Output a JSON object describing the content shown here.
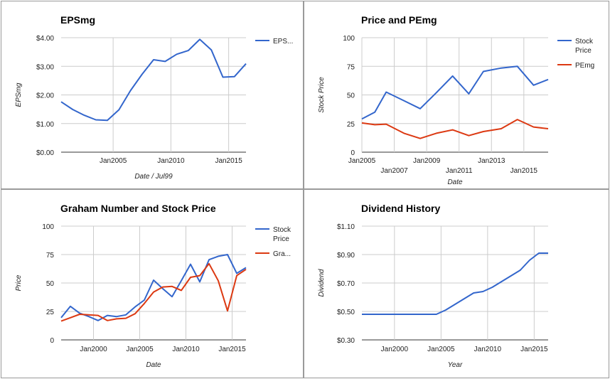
{
  "colors": {
    "blue": "#3366cc",
    "red": "#dc3912"
  },
  "chart_data": [
    {
      "type": "line",
      "title": "EPSmg",
      "xlabel": "Date / Jul99",
      "ylabel": "EPSmg",
      "ylim": [
        0,
        4
      ],
      "yticks": [
        "$0.00",
        "$1.00",
        "$2.00",
        "$3.00",
        "$4.00"
      ],
      "xlim": [
        2000.5,
        2016.5
      ],
      "xticks": [
        {
          "label": "Jan2005",
          "x": 2005
        },
        {
          "label": "Jan2010",
          "x": 2010
        },
        {
          "label": "Jan2015",
          "x": 2015
        }
      ],
      "legend_position": "right",
      "grid": true,
      "series": [
        {
          "name": "EPS...",
          "color": "#3366cc",
          "x": [
            2000.5,
            2001.5,
            2002.5,
            2003.5,
            2004.5,
            2005.5,
            2006.5,
            2007.5,
            2008.5,
            2009.5,
            2010.5,
            2011.5,
            2012.5,
            2013.5,
            2014.5,
            2015.5,
            2016.5
          ],
          "y": [
            1.76,
            1.49,
            1.29,
            1.13,
            1.11,
            1.48,
            2.15,
            2.72,
            3.23,
            3.17,
            3.42,
            3.55,
            3.94,
            3.57,
            2.62,
            2.64,
            3.09
          ]
        }
      ]
    },
    {
      "type": "line",
      "title": "Price and PEmg",
      "xlabel": "Date",
      "ylabel": "Stock Price",
      "ylim": [
        0,
        100
      ],
      "yticks": [
        "0",
        "25",
        "50",
        "75",
        "100"
      ],
      "xlim": [
        2005,
        2016.5
      ],
      "xticks": [
        {
          "label": "Jan2005",
          "x": 2005,
          "row": 1
        },
        {
          "label": "Jan2007",
          "x": 2007,
          "row": 2
        },
        {
          "label": "Jan2009",
          "x": 2009,
          "row": 1
        },
        {
          "label": "Jan2011",
          "x": 2011,
          "row": 2
        },
        {
          "label": "Jan2013",
          "x": 2013,
          "row": 1
        },
        {
          "label": "Jan2015",
          "x": 2015,
          "row": 2
        }
      ],
      "legend_position": "right",
      "grid": true,
      "series": [
        {
          "name": "Stock Price",
          "color": "#3366cc",
          "x": [
            2005,
            2005.8,
            2006.5,
            2007.6,
            2008.6,
            2009.6,
            2010.6,
            2011.6,
            2012.5,
            2013.6,
            2014.6,
            2015.6,
            2016.5
          ],
          "y": [
            29,
            35,
            52.5,
            45,
            38,
            52,
            66.5,
            51,
            70.5,
            73.5,
            75,
            58.5,
            63.5
          ]
        },
        {
          "name": "PEmg",
          "color": "#dc3912",
          "x": [
            2005,
            2005.8,
            2006.5,
            2007.6,
            2008.6,
            2009.6,
            2010.6,
            2011.6,
            2012.5,
            2013.6,
            2014.6,
            2015.6,
            2016.5
          ],
          "y": [
            25.5,
            24,
            24.5,
            16.5,
            12,
            16.5,
            19.5,
            14.5,
            18,
            20.5,
            28.5,
            22,
            20.5
          ]
        }
      ]
    },
    {
      "type": "line",
      "title": "Graham Number and Stock Price",
      "xlabel": "Date",
      "ylabel": "Price",
      "ylim": [
        0,
        100
      ],
      "yticks": [
        "0",
        "25",
        "50",
        "75",
        "100"
      ],
      "xlim": [
        1996.5,
        2016.5
      ],
      "xticks": [
        {
          "label": "Jan2000",
          "x": 2000
        },
        {
          "label": "Jan2005",
          "x": 2005
        },
        {
          "label": "Jan2010",
          "x": 2010
        },
        {
          "label": "Jan2015",
          "x": 2015
        }
      ],
      "legend_position": "right",
      "grid": true,
      "series": [
        {
          "name": "Stock Price",
          "color": "#3366cc",
          "x": [
            1996.5,
            1997.5,
            1998.5,
            1999.5,
            2000.5,
            2001.5,
            2002.5,
            2003.5,
            2004.5,
            2005.5,
            2006.5,
            2007.5,
            2008.5,
            2009.5,
            2010.5,
            2011.5,
            2012.5,
            2013.5,
            2014.5,
            2015.5,
            2016.5
          ],
          "y": [
            19.5,
            29.5,
            23.5,
            20.5,
            17,
            21.5,
            20.5,
            22,
            29,
            35,
            52.5,
            45,
            38,
            52,
            66.5,
            51,
            70.5,
            73.5,
            75,
            58.5,
            63.5
          ]
        },
        {
          "name": "Gra...",
          "color": "#dc3912",
          "x": [
            1996.5,
            1997.5,
            1998.5,
            1999.5,
            2000.5,
            2001.5,
            2002.5,
            2003.5,
            2004.5,
            2005.5,
            2006.5,
            2007.5,
            2008.5,
            2009.5,
            2010.5,
            2011.5,
            2012.5,
            2013.5,
            2014.5,
            2015.5,
            2016.5
          ],
          "y": [
            16.5,
            19.5,
            22.5,
            22,
            21.5,
            17,
            18.5,
            19,
            23,
            32,
            42,
            46.5,
            47,
            43.5,
            55,
            56.5,
            67,
            52,
            25.5,
            56.5,
            62
          ]
        }
      ]
    },
    {
      "type": "line",
      "title": "Dividend History",
      "xlabel": "Year",
      "ylabel": "Dividend",
      "ylim": [
        0.3,
        1.1
      ],
      "yticks": [
        "$0.30",
        "$0.50",
        "$0.70",
        "$0.90",
        "$1.10"
      ],
      "xlim": [
        1996.5,
        2016.5
      ],
      "xticks": [
        {
          "label": "Jan2000",
          "x": 2000
        },
        {
          "label": "Jan2005",
          "x": 2005
        },
        {
          "label": "Jan2010",
          "x": 2010
        },
        {
          "label": "Jan2015",
          "x": 2015
        }
      ],
      "legend_position": "none",
      "grid": true,
      "series": [
        {
          "name": "",
          "color": "#3366cc",
          "x": [
            1996.5,
            1999.5,
            2002.5,
            2004.5,
            2005.5,
            2006.5,
            2007.5,
            2008.5,
            2009.5,
            2010.5,
            2011.5,
            2012.5,
            2013.5,
            2014.5,
            2015.5,
            2016.5
          ],
          "y": [
            0.48,
            0.48,
            0.48,
            0.48,
            0.51,
            0.55,
            0.59,
            0.63,
            0.64,
            0.67,
            0.71,
            0.75,
            0.79,
            0.86,
            0.91,
            0.91
          ]
        }
      ]
    }
  ]
}
